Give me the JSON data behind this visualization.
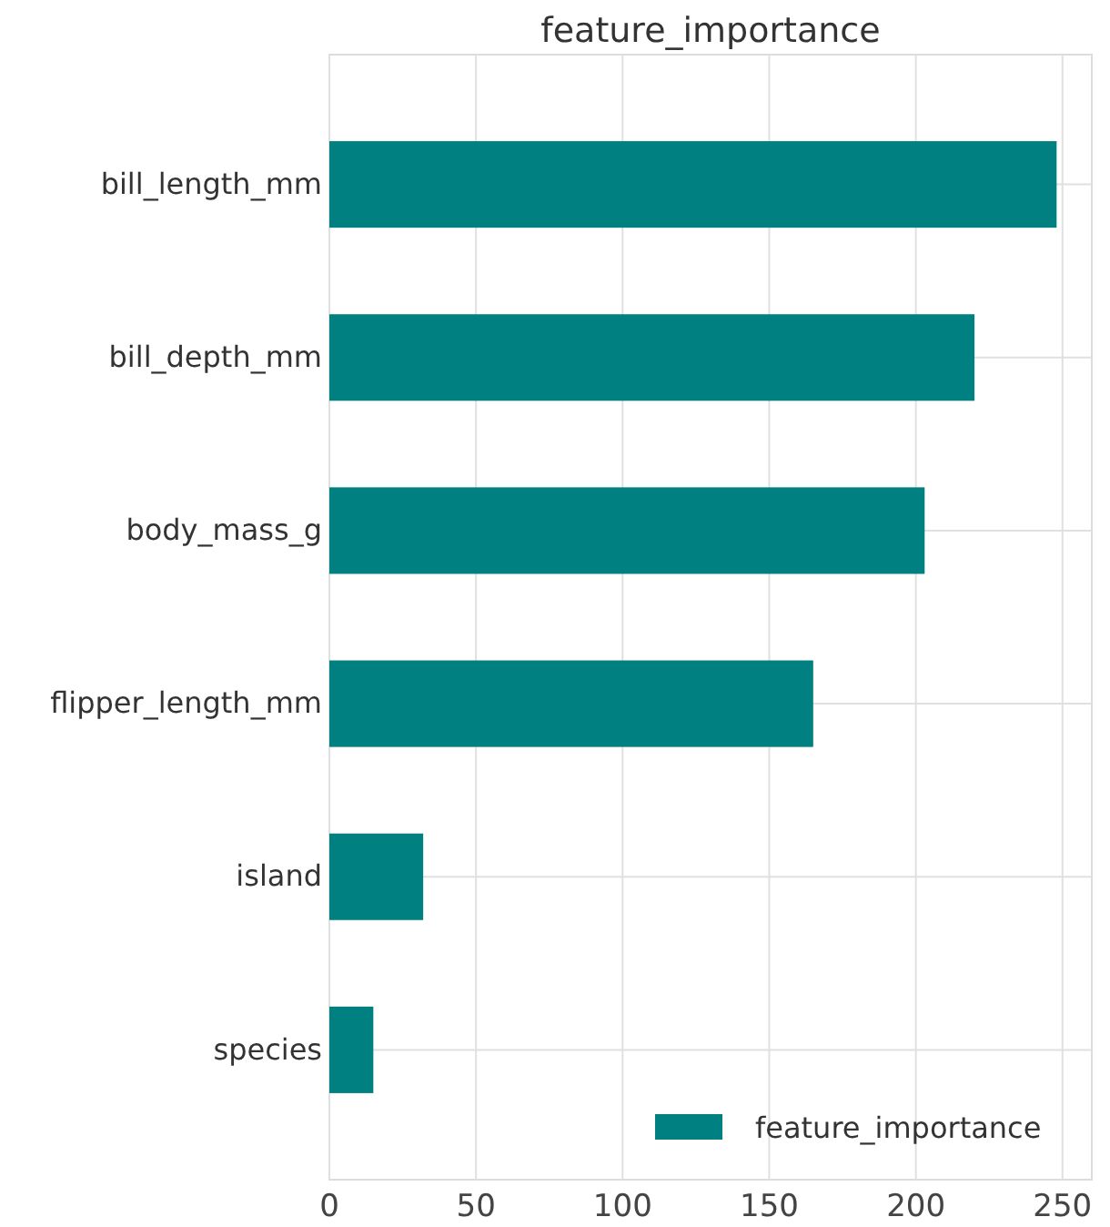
{
  "chart_data": {
    "type": "bar",
    "orientation": "horizontal",
    "title": "feature_importance",
    "categories": [
      "bill_length_mm",
      "bill_depth_mm",
      "body_mass_g",
      "flipper_length_mm",
      "island",
      "species"
    ],
    "series": [
      {
        "name": "feature_importance",
        "color": "#008080",
        "values": [
          248,
          220,
          203,
          165,
          32,
          15
        ]
      }
    ],
    "xlim": [
      0,
      260
    ],
    "xticks": [
      0,
      50,
      100,
      150,
      200,
      250
    ],
    "grid": true,
    "legend": "bottom right"
  }
}
